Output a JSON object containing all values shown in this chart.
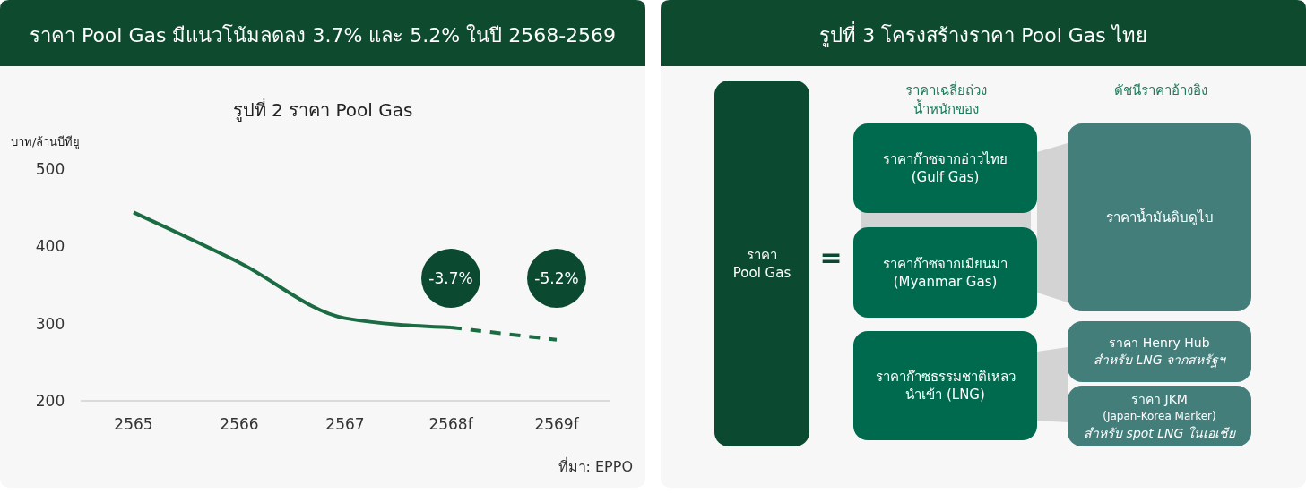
{
  "chart_data": [
    {
      "type": "line",
      "title": "ราคา Pool Gas มีแนวโน้มลดลง 3.7% และ 5.2% ในปี 2568-2569",
      "subtitle": "รูปที่ 2 ราคา Pool Gas",
      "ylabel": "บาท/ล้านบีทียู",
      "categories": [
        "2565",
        "2566",
        "2567",
        "2568f",
        "2569f"
      ],
      "series": [
        {
          "color": "#1b6b43",
          "values": [
            444,
            379,
            307,
            295,
            null
          ],
          "line_style": "solid"
        },
        {
          "color": "#1b6b43",
          "values": [
            null,
            null,
            null,
            295,
            279
          ],
          "line_style": "dashed"
        }
      ],
      "ylim": [
        200,
        500
      ],
      "yticks": [
        200,
        300,
        400,
        500
      ],
      "annotations": [
        "-3.7%",
        "-5.2%",
        "ที่มา: EPPO"
      ]
    },
    {
      "type": "other",
      "title": "รูปที่ 3 โครงสร้างราคา Pool Gas ไทย",
      "annotations": [
        "ราคา\nPool Gas",
        "=",
        "ราคาเฉลี่ยถ่วง\nน้ำหนักของ",
        "ดัชนีราคาอ้างอิง",
        "ราคาก๊าซจากอ่าวไทย\n(Gulf Gas)",
        "ราคาก๊าซจากเมียนมา\n(Myanmar Gas)",
        "ราคาก๊าซธรรมชาติเหลว\nนำเข้า (LNG)",
        "ราคาน้ำมันดิบดูไบ",
        "ราคา Henry Hub\nสำหรับ LNG จากสหรัฐฯ",
        "ราคา JKM\n(Japan-Korea Marker)\nสำหรับ spot LNG ในเอเชีย"
      ]
    }
  ]
}
